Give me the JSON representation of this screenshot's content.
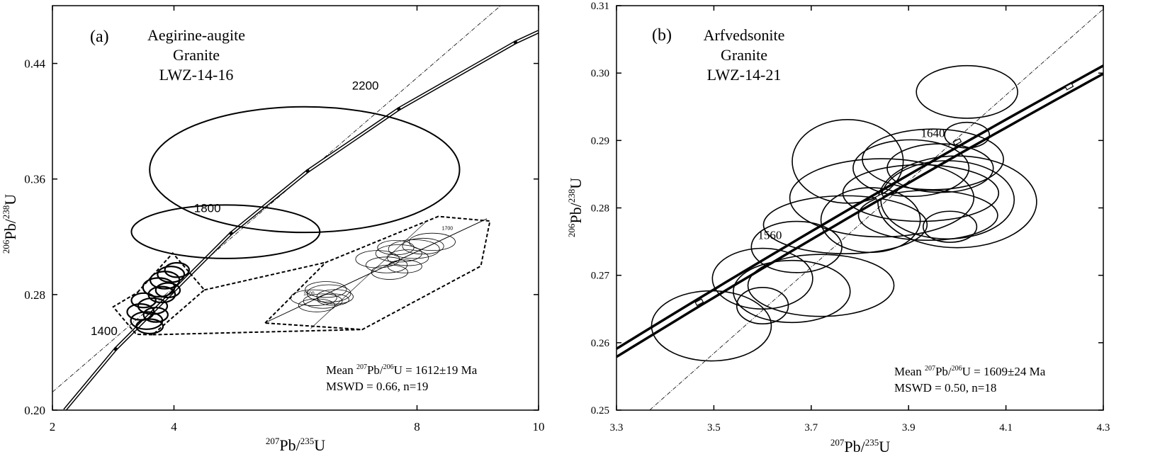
{
  "chart_data": [
    {
      "type": "scatter",
      "subtype": "concordia-diagram",
      "panel_label": "(a)",
      "title_lines": [
        "Aegirine-augite",
        "Granite",
        "LWZ-14-16"
      ],
      "xlabel": {
        "pre": "207",
        "main": "Pb/",
        "sup": "235",
        "end": "U"
      },
      "ylabel": {
        "pre": "206",
        "main": "Pb/",
        "sup": "238",
        "end": "U"
      },
      "xlim": [
        2,
        10
      ],
      "ylim": [
        0.2,
        0.48
      ],
      "xticks": [
        2,
        4,
        8,
        10
      ],
      "xtick_labels": [
        "2",
        "4",
        "8",
        "10"
      ],
      "yticks": [
        0.2,
        0.28,
        0.36,
        0.44
      ],
      "ytick_labels": [
        "0.20",
        "0.28",
        "0.36",
        "0.44"
      ],
      "concordia_age_labels": [
        {
          "text": "1400",
          "x": 2.85,
          "y": 0.252
        },
        {
          "text": "1800",
          "x": 4.55,
          "y": 0.337
        },
        {
          "text": "2200",
          "x": 7.15,
          "y": 0.422
        }
      ],
      "large_ellipses": [
        {
          "cx": 6.15,
          "cy": 0.3665,
          "rx": 2.55,
          "ry": 0.0435,
          "rot": 0
        },
        {
          "cx": 4.85,
          "cy": 0.3235,
          "rx": 1.55,
          "ry": 0.0185,
          "rot": 0
        }
      ],
      "cluster_ellipses": [
        {
          "cx": 3.45,
          "cy": 0.268,
          "rx": 0.22,
          "ry": 0.0055
        },
        {
          "cx": 3.55,
          "cy": 0.262,
          "rx": 0.26,
          "ry": 0.006
        },
        {
          "cx": 3.65,
          "cy": 0.272,
          "rx": 0.24,
          "ry": 0.0055
        },
        {
          "cx": 3.6,
          "cy": 0.258,
          "rx": 0.22,
          "ry": 0.005
        },
        {
          "cx": 3.7,
          "cy": 0.266,
          "rx": 0.2,
          "ry": 0.005
        },
        {
          "cx": 3.75,
          "cy": 0.285,
          "rx": 0.26,
          "ry": 0.0065
        },
        {
          "cx": 3.85,
          "cy": 0.29,
          "rx": 0.24,
          "ry": 0.006
        },
        {
          "cx": 3.8,
          "cy": 0.28,
          "rx": 0.22,
          "ry": 0.0055
        },
        {
          "cx": 3.95,
          "cy": 0.294,
          "rx": 0.22,
          "ry": 0.0055
        },
        {
          "cx": 3.9,
          "cy": 0.283,
          "rx": 0.2,
          "ry": 0.005
        },
        {
          "cx": 4.05,
          "cy": 0.297,
          "rx": 0.2,
          "ry": 0.005
        },
        {
          "cx": 3.5,
          "cy": 0.276,
          "rx": 0.2,
          "ry": 0.005
        }
      ],
      "concordia_markers": [
        {
          "x": 3.04,
          "y": 0.2423
        },
        {
          "x": 4.94,
          "y": 0.3224
        },
        {
          "x": 6.2,
          "y": 0.3655
        },
        {
          "x": 7.7,
          "y": 0.4085
        },
        {
          "x": 9.62,
          "y": 0.4546
        }
      ],
      "inset": {
        "age_labels": [
          {
            "text": "1500",
            "x": 6.22,
            "y": 0.2797
          },
          {
            "text": "1700",
            "x": 8.5,
            "y": 0.3247
          }
        ]
      },
      "annotation": {
        "line1": {
          "pre": "Mean ",
          "sup1": "207",
          "mid": "Pb/",
          "sup2": "206",
          "post": "U = 1612±19  Ma"
        },
        "line2": "MSWD = 0.66, n=19"
      }
    },
    {
      "type": "scatter",
      "subtype": "concordia-diagram",
      "panel_label": "(b)",
      "title_lines": [
        "Arfvedsonite",
        "Granite",
        "LWZ-14-21"
      ],
      "xlabel": {
        "pre": "207",
        "main": "Pb/",
        "sup": "235",
        "end": "U"
      },
      "ylabel": {
        "pre": "206",
        "main": "Pb/",
        "sup": "238",
        "end": "U"
      },
      "xlim": [
        3.3,
        4.3
      ],
      "ylim": [
        0.25,
        0.31
      ],
      "xticks": [
        3.3,
        3.5,
        3.7,
        3.9,
        4.1,
        4.3
      ],
      "xtick_labels": [
        "3.3",
        "3.5",
        "3.7",
        "3.9",
        "4.1",
        "4.3"
      ],
      "yticks": [
        0.25,
        0.26,
        0.27,
        0.28,
        0.29,
        0.3,
        0.31
      ],
      "ytick_labels": [
        "0.25",
        "0.26",
        "0.27",
        "0.28",
        "0.29",
        "0.30",
        "0.31"
      ],
      "concordia_age_labels": [
        {
          "text": "1560",
          "x": 3.615,
          "y": 0.2754
        },
        {
          "text": "1640",
          "x": 3.95,
          "y": 0.2905
        }
      ],
      "ellipses": [
        {
          "cx": 3.495,
          "cy": 0.2625,
          "rx": 0.123,
          "ry": 0.0052
        },
        {
          "cx": 3.6,
          "cy": 0.2695,
          "rx": 0.103,
          "ry": 0.0045
        },
        {
          "cx": 3.66,
          "cy": 0.2676,
          "rx": 0.12,
          "ry": 0.0046
        },
        {
          "cx": 3.72,
          "cy": 0.2685,
          "rx": 0.15,
          "ry": 0.0046
        },
        {
          "cx": 3.6,
          "cy": 0.2655,
          "rx": 0.053,
          "ry": 0.0027
        },
        {
          "cx": 3.67,
          "cy": 0.2742,
          "rx": 0.093,
          "ry": 0.0038
        },
        {
          "cx": 3.77,
          "cy": 0.2775,
          "rx": 0.168,
          "ry": 0.0043
        },
        {
          "cx": 3.845,
          "cy": 0.2815,
          "rx": 0.189,
          "ry": 0.0058
        },
        {
          "cx": 3.925,
          "cy": 0.2822,
          "rx": 0.16,
          "ry": 0.0042
        },
        {
          "cx": 3.98,
          "cy": 0.2812,
          "rx": 0.137,
          "ry": 0.0058
        },
        {
          "cx": 4.0,
          "cy": 0.2809,
          "rx": 0.163,
          "ry": 0.0068
        },
        {
          "cx": 3.985,
          "cy": 0.2772,
          "rx": 0.055,
          "ry": 0.0023
        },
        {
          "cx": 3.94,
          "cy": 0.2789,
          "rx": 0.143,
          "ry": 0.0037
        },
        {
          "cx": 3.822,
          "cy": 0.2782,
          "rx": 0.102,
          "ry": 0.0048
        },
        {
          "cx": 3.905,
          "cy": 0.2859,
          "rx": 0.119,
          "ry": 0.0042
        },
        {
          "cx": 3.965,
          "cy": 0.2859,
          "rx": 0.109,
          "ry": 0.0036
        },
        {
          "cx": 4.02,
          "cy": 0.2908,
          "rx": 0.046,
          "ry": 0.0019
        },
        {
          "cx": 4.02,
          "cy": 0.2972,
          "rx": 0.104,
          "ry": 0.0039
        },
        {
          "cx": 3.775,
          "cy": 0.2869,
          "rx": 0.114,
          "ry": 0.0062
        },
        {
          "cx": 3.95,
          "cy": 0.2872,
          "rx": 0.145,
          "ry": 0.0045
        }
      ],
      "concordia_markers": [
        {
          "x": 3.47,
          "y": 0.266
        },
        {
          "x": 3.84,
          "y": 0.2816
        },
        {
          "x": 4.0,
          "y": 0.2898
        },
        {
          "x": 4.23,
          "y": 0.298
        }
      ],
      "annotation": {
        "line1": {
          "pre": "Mean ",
          "sup1": "207",
          "mid": "Pb/",
          "sup2": "206",
          "post": "U = 1609±24  Ma"
        },
        "line2": "MSWD = 0.50, n=18"
      }
    }
  ]
}
